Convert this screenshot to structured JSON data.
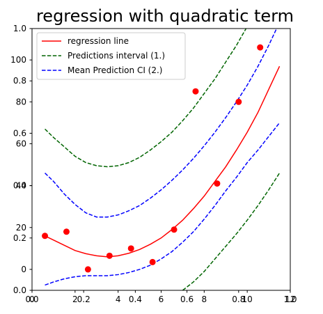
{
  "chart_data": {
    "type": "line",
    "title": "regression with quadratic term",
    "xlabel": "",
    "ylabel": "",
    "axes": {
      "x_range": [
        0,
        12
      ],
      "y_range": [
        -10,
        115
      ],
      "x_ticks": [
        0,
        2,
        4,
        6,
        8,
        10,
        12
      ],
      "y_ticks": [
        0,
        20,
        40,
        60,
        80,
        100
      ],
      "overlay_x_ticks": [
        "0.0",
        "0.2",
        "0.4",
        "0.6",
        "0.8",
        "1.0"
      ],
      "overlay_y_ticks": [
        "0.0",
        "0.2",
        "0.4",
        "0.6",
        "0.8",
        "1.0"
      ]
    },
    "grid": false,
    "legend_position": "upper-left",
    "series": [
      {
        "name": "regression line",
        "style": "solid",
        "color": "#ff0000",
        "x": [
          0.6,
          1.0,
          1.5,
          2.0,
          2.5,
          3.0,
          3.5,
          4.0,
          4.5,
          5.0,
          5.5,
          6.0,
          6.5,
          7.0,
          7.5,
          8.0,
          8.5,
          9.0,
          9.5,
          10.0,
          10.5,
          11.0,
          11.5
        ],
        "y": [
          16,
          14,
          11.5,
          9,
          7.5,
          6.5,
          6,
          6.5,
          7.7,
          9.5,
          12,
          15,
          19,
          23.5,
          29,
          35,
          42,
          49,
          57,
          65.5,
          75,
          86,
          97
        ]
      },
      {
        "name": "Predictions interval (1.)",
        "style": "dashed",
        "color": "#006400",
        "bands": [
          {
            "x": [
              0.6,
              1.0,
              1.5,
              2.0,
              2.5,
              3.0,
              3.5,
              4.0,
              4.5,
              5.0,
              5.5,
              6.0,
              6.5,
              7.0,
              7.5,
              8.0,
              8.5,
              9.0,
              9.5,
              10.0,
              10.5,
              11.0,
              11.5
            ],
            "y": [
              67,
              63,
              58.5,
              54,
              51,
              49.5,
              49,
              49.5,
              51,
              53.5,
              57,
              61,
              65.5,
              71,
              77,
              84,
              91,
              99,
              107,
              116,
              125,
              135,
              146
            ]
          },
          {
            "x": [
              7.0,
              7.5,
              8.0,
              8.5,
              9.0,
              9.5,
              10.0,
              10.5,
              11.0,
              11.5
            ],
            "y": [
              -10,
              -6,
              -1,
              5,
              11,
              17,
              23.5,
              30.5,
              38,
              46
            ]
          }
        ]
      },
      {
        "name": "Mean Prediction CI (2.)",
        "style": "dashed",
        "color": "#0000ff",
        "bands": [
          {
            "x": [
              0.6,
              1.0,
              1.5,
              2.0,
              2.5,
              3.0,
              3.5,
              4.0,
              4.5,
              5.0,
              5.5,
              6.0,
              6.5,
              7.0,
              7.5,
              8.0,
              8.5,
              9.0,
              9.5,
              10.0,
              10.5,
              11.0,
              11.5
            ],
            "y": [
              46,
              42,
              36,
              31,
              27,
              25,
              25,
              26,
              28,
              30.5,
              34,
              38,
              42.5,
              47.5,
              53,
              59,
              65.5,
              72.5,
              80,
              88,
              97,
              107,
              118
            ]
          },
          {
            "x": [
              0.6,
              1.0,
              1.5,
              2.0,
              2.5,
              3.0,
              3.5,
              4.0,
              4.5,
              5.0,
              5.5,
              6.0,
              6.5,
              7.0,
              7.5,
              8.0,
              8.5,
              9.0,
              9.5,
              10.0,
              10.5,
              11.0,
              11.5
            ],
            "y": [
              -7.5,
              -6,
              -4.5,
              -3.5,
              -3,
              -3,
              -3,
              -2.5,
              -1.5,
              0,
              2,
              5,
              8.5,
              13,
              18,
              24,
              30.5,
              37.5,
              44,
              51,
              57,
              63.5,
              70
            ]
          }
        ]
      },
      {
        "name": "observations",
        "style": "markers",
        "color": "#ff0000",
        "x": [
          0.6,
          1.6,
          2.6,
          3.6,
          4.6,
          5.6,
          6.6,
          7.6,
          8.6,
          9.6,
          10.6
        ],
        "y": [
          16,
          18,
          0,
          6.5,
          10,
          3.5,
          19,
          85,
          41,
          80,
          106
        ]
      }
    ]
  }
}
